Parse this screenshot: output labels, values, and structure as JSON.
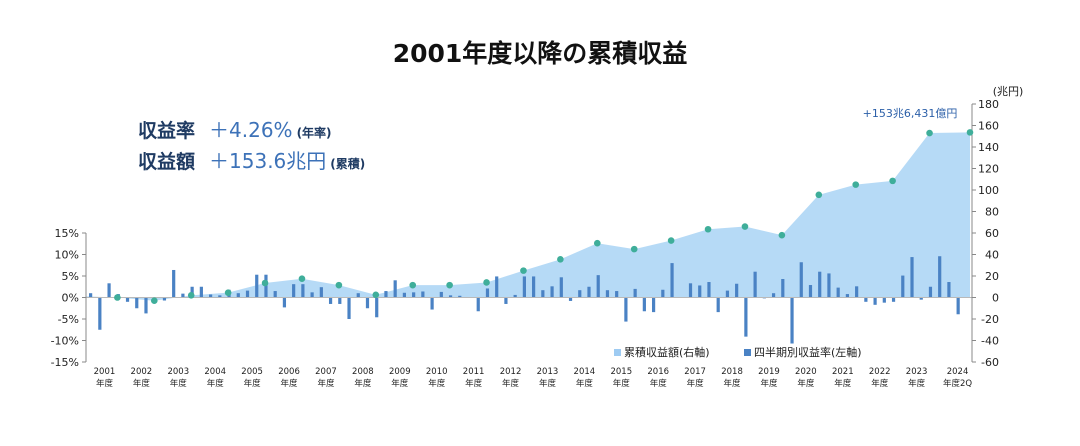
{
  "title": "2001年度以降の累積収益",
  "summary": {
    "rate_label": "収益率",
    "rate_value": "＋4.26%",
    "rate_note": "(年率)",
    "amount_label": "収益額",
    "amount_value": "＋153.6兆円",
    "amount_note": "(累積)"
  },
  "chart_data": {
    "type": "bar",
    "combo": "quarterly bars (left axis) + cumulative area with year-end markers (right axis)",
    "y_left": {
      "ticks": [
        "15%",
        "10%",
        "5%",
        "0%",
        "-5%",
        "-10%",
        "-15%"
      ],
      "range": [
        -15,
        15
      ],
      "unit": "%"
    },
    "y_right": {
      "unit": "(兆円)",
      "ticks": [
        "180",
        "160",
        "140",
        "120",
        "100",
        "80",
        "60",
        "40",
        "20",
        "0",
        "-20",
        "-40",
        "-60"
      ],
      "range": [
        -60,
        180
      ]
    },
    "x_labels": [
      [
        "2001",
        "年度"
      ],
      [
        "2002",
        "年度"
      ],
      [
        "2003",
        "年度"
      ],
      [
        "2004",
        "年度"
      ],
      [
        "2005",
        "年度"
      ],
      [
        "2006",
        "年度"
      ],
      [
        "2007",
        "年度"
      ],
      [
        "2008",
        "年度"
      ],
      [
        "2009",
        "年度"
      ],
      [
        "2010",
        "年度"
      ],
      [
        "2011",
        "年度"
      ],
      [
        "2012",
        "年度"
      ],
      [
        "2013",
        "年度"
      ],
      [
        "2014",
        "年度"
      ],
      [
        "2015",
        "年度"
      ],
      [
        "2016",
        "年度"
      ],
      [
        "2017",
        "年度"
      ],
      [
        "2018",
        "年度"
      ],
      [
        "2019",
        "年度"
      ],
      [
        "2020",
        "年度"
      ],
      [
        "2021",
        "年度"
      ],
      [
        "2022",
        "年度"
      ],
      [
        "2023",
        "年度"
      ],
      [
        "2024",
        "年度2Q"
      ]
    ],
    "legend": [
      {
        "name": "累積収益額(右軸)",
        "color": "#9ecbf2"
      },
      {
        "name": "四半期別収益率(左軸)",
        "color": "#4a82c4"
      }
    ],
    "annotation": "+153兆6,431億円",
    "quarterly_returns": [
      1.0,
      -7.5,
      3.3,
      0.8,
      -1.0,
      -2.5,
      -3.7,
      0.1,
      -0.7,
      6.4,
      0.9,
      2.5,
      2.5,
      0.7,
      0.5,
      1.8,
      1.0,
      1.6,
      5.3,
      5.3,
      1.5,
      -2.3,
      3.1,
      3.1,
      1.2,
      2.4,
      -1.5,
      -1.5,
      -5.0,
      1.0,
      -2.5,
      -4.6,
      1.5,
      4.0,
      1.1,
      1.2,
      1.4,
      -2.8,
      1.3,
      0.5,
      0.4,
      0.1,
      -3.2,
      2.1,
      4.9,
      -1.5,
      0.6,
      4.9,
      4.9,
      1.7,
      2.6,
      4.7,
      -0.8,
      1.7,
      2.5,
      5.2,
      1.7,
      1.5,
      -5.6,
      2.0,
      -3.2,
      -3.4,
      1.8,
      8.0,
      0.0,
      3.3,
      2.8,
      3.6,
      -3.4,
      1.6,
      3.2,
      -9.1,
      6.0,
      -0.2,
      1.0,
      4.3,
      -10.7,
      8.2,
      2.9,
      6.0,
      5.6,
      2.3,
      0.8,
      2.6,
      -1.0,
      -1.7,
      -1.2,
      -1.0,
      5.1,
      9.4,
      -0.5,
      2.5,
      9.6,
      3.6,
      -3.9
    ],
    "cumulative_year_end": [
      {
        "label": "2001",
        "value": 0.0
      },
      {
        "label": "2002",
        "value": -3.0
      },
      {
        "label": "2003",
        "value": 2.0
      },
      {
        "label": "2004",
        "value": 4.5
      },
      {
        "label": "2005",
        "value": 13.5
      },
      {
        "label": "2006",
        "value": 17.5
      },
      {
        "label": "2007",
        "value": 11.5
      },
      {
        "label": "2008",
        "value": 2.5
      },
      {
        "label": "2009",
        "value": 11.5
      },
      {
        "label": "2010",
        "value": 11.5
      },
      {
        "label": "2011",
        "value": 14.0
      },
      {
        "label": "2012",
        "value": 25.0
      },
      {
        "label": "2013",
        "value": 35.5
      },
      {
        "label": "2014",
        "value": 50.5
      },
      {
        "label": "2015",
        "value": 45.0
      },
      {
        "label": "2016",
        "value": 53.0
      },
      {
        "label": "2017",
        "value": 63.5
      },
      {
        "label": "2018",
        "value": 66.0
      },
      {
        "label": "2019",
        "value": 58.0
      },
      {
        "label": "2020",
        "value": 95.5
      },
      {
        "label": "2021",
        "value": 105.0
      },
      {
        "label": "2022",
        "value": 108.5
      },
      {
        "label": "2023",
        "value": 153.0
      },
      {
        "label": "2024 2Q",
        "value": 153.6
      }
    ]
  }
}
